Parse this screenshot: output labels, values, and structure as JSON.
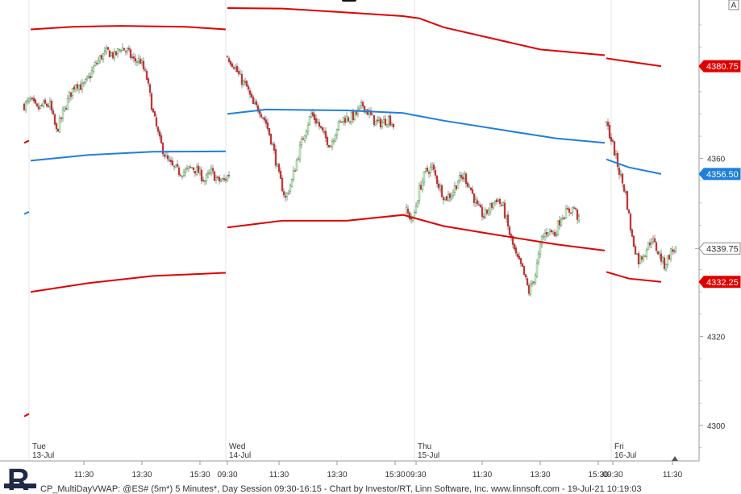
{
  "chart_data": {
    "type": "line",
    "x_unit": "5-minute bars, day session 09:30-16:15",
    "ylim": [
      4292,
      4395
    ],
    "y_ticks": [
      4300,
      4320,
      4340,
      4360
    ],
    "y_tick_labels": [
      "4300",
      "4320",
      "4340",
      "4360"
    ],
    "x_tick_labels": [
      "11:30",
      "13:30",
      "15:30",
      "09:30",
      "11:30",
      "13:30",
      "15:30",
      "09:30",
      "11:30",
      "13:30",
      "15:30",
      "09:30",
      "11:30"
    ],
    "day_labels": [
      {
        "weekday": "Tue",
        "date": "13-Jul"
      },
      {
        "weekday": "Wed",
        "date": "14-Jul"
      },
      {
        "weekday": "Thu",
        "date": "15-Jul"
      },
      {
        "weekday": "Fri",
        "date": "16-Jul"
      }
    ],
    "price_badges": [
      {
        "value": "4380.75",
        "color": "#e00000"
      },
      {
        "value": "4356.50",
        "color": "#1f7fdc"
      },
      {
        "value": "4339.75",
        "color": "#ffffff"
      },
      {
        "value": "4332.25",
        "color": "#e00000"
      }
    ],
    "series": [
      {
        "color": "#e00000",
        "segments": [
          [
            [
              0,
              4363.5
            ],
            [
              3,
              4364.0
            ]
          ],
          [
            [
              4,
              4389.0
            ],
            [
              30,
              4389.6
            ],
            [
              60,
              4389.8
            ],
            [
              100,
              4389.6
            ],
            [
              125,
              4389.0
            ]
          ],
          [
            [
              126,
              4393.8
            ],
            [
              160,
              4393.7
            ],
            [
              200,
              4392.8
            ],
            [
              235,
              4392.0
            ],
            [
              245,
              4391.5
            ],
            [
              260,
              4389.5
            ],
            [
              290,
              4387.0
            ],
            [
              320,
              4384.5
            ],
            [
              360,
              4383.2
            ]
          ],
          [
            [
              361,
              4382.5
            ],
            [
              380,
              4381.5
            ],
            [
              395,
              4380.75
            ]
          ]
        ]
      },
      {
        "color": "#1f7fdc",
        "segments": [
          [
            [
              0,
              4347.5
            ],
            [
              3,
              4348.0
            ]
          ],
          [
            [
              4,
              4359.5
            ],
            [
              40,
              4360.8
            ],
            [
              80,
              4361.5
            ],
            [
              125,
              4361.6
            ]
          ],
          [
            [
              126,
              4370.0
            ],
            [
              150,
              4371.0
            ],
            [
              200,
              4370.8
            ],
            [
              235,
              4370.2
            ],
            [
              260,
              4368.5
            ],
            [
              300,
              4366.2
            ],
            [
              330,
              4364.5
            ],
            [
              360,
              4363.5
            ]
          ],
          [
            [
              361,
              4359.8
            ],
            [
              375,
              4358.0
            ],
            [
              395,
              4356.5
            ]
          ]
        ]
      },
      {
        "color": "#e00000",
        "segments": [
          [
            [
              0,
              4302.0
            ],
            [
              3,
              4302.6
            ]
          ],
          [
            [
              4,
              4330.0
            ],
            [
              40,
              4332.0
            ],
            [
              80,
              4333.6
            ],
            [
              125,
              4334.3
            ]
          ],
          [
            [
              126,
              4344.5
            ],
            [
              160,
              4346.0
            ],
            [
              200,
              4346.0
            ],
            [
              235,
              4347.3
            ],
            [
              260,
              4344.8
            ],
            [
              290,
              4343.0
            ],
            [
              330,
              4340.7
            ],
            [
              360,
              4339.3
            ]
          ],
          [
            [
              361,
              4334.5
            ],
            [
              375,
              4333.0
            ],
            [
              395,
              4332.25
            ]
          ]
        ]
      }
    ],
    "candles": {
      "up_color": "#2e9a2e",
      "down_color": "#c03030",
      "days": [
        {
          "start": 0,
          "path": [
            4372,
            4373,
            4371,
            4372,
            4372,
            4366,
            4370,
            4374,
            4377,
            4376,
            4378,
            4381,
            4383,
            4384,
            4383,
            4385,
            4384,
            4382,
            4382,
            4378,
            4370,
            4364,
            4360,
            4358,
            4357,
            4357,
            4358,
            4357,
            4355,
            4357,
            4355,
            4355,
            4357
          ]
        },
        {
          "start": 126,
          "path": [
            4383,
            4381,
            4378,
            4376,
            4372,
            4371,
            4368,
            4363,
            4356,
            4351,
            4355,
            4361,
            4366,
            4370,
            4368,
            4365,
            4363,
            4367,
            4369,
            4369,
            4370,
            4372,
            4370,
            4368,
            4368,
            4369,
            4367
          ]
        },
        {
          "start": 237,
          "path": [
            4348,
            4346,
            4353,
            4357,
            4358,
            4354,
            4351,
            4352,
            4355,
            4356,
            4353,
            4349,
            4347,
            4349,
            4351,
            4349,
            4343,
            4338,
            4335,
            4330,
            4334,
            4342,
            4344,
            4343,
            4347,
            4348,
            4349,
            4345
          ]
        },
        {
          "start": 361,
          "path": [
            4368,
            4363,
            4357,
            4352,
            4342,
            4337,
            4339,
            4342,
            4339,
            4336,
            4339,
            4340
          ]
        }
      ]
    },
    "footer": "CP_MultiDayVWAP: @ES# (5m*) 5 Minutes*, Day Session 09:30-16:15 - Chart by Investor/RT, Linn Software, Inc. www.linnsoft.com - 19-Jul-21 10:19:03",
    "corner_mark": "A",
    "logo_text": "R"
  }
}
